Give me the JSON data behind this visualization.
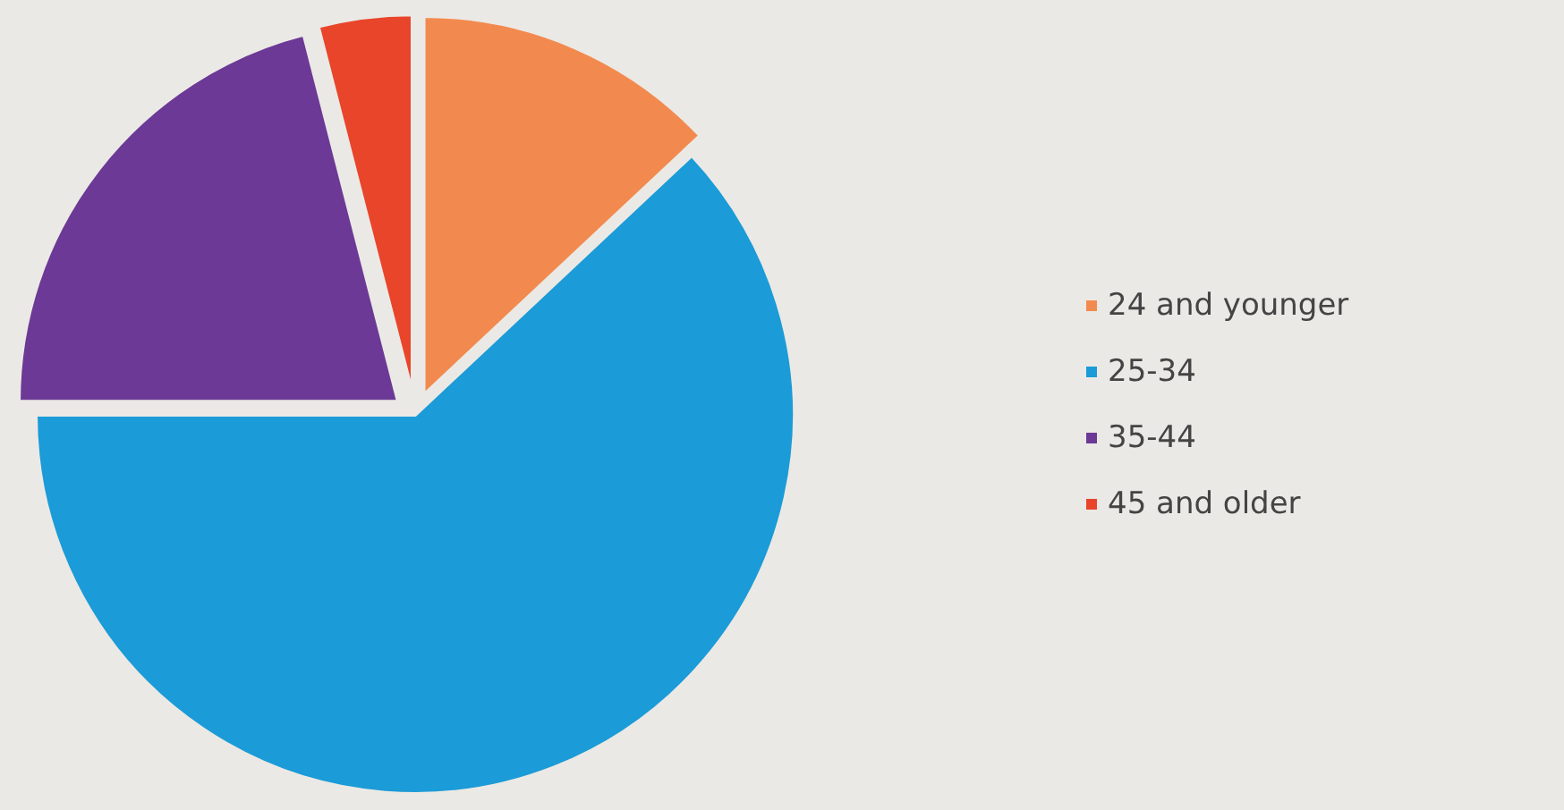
{
  "chart_data": {
    "type": "pie",
    "categories": [
      "24 and younger",
      "25-34",
      "35-44",
      "45 and older"
    ],
    "values": [
      13,
      62,
      21,
      4
    ],
    "colors": [
      "#f28a4f",
      "#1b9bd7",
      "#6c3996",
      "#e8452b"
    ],
    "legend": "right"
  }
}
